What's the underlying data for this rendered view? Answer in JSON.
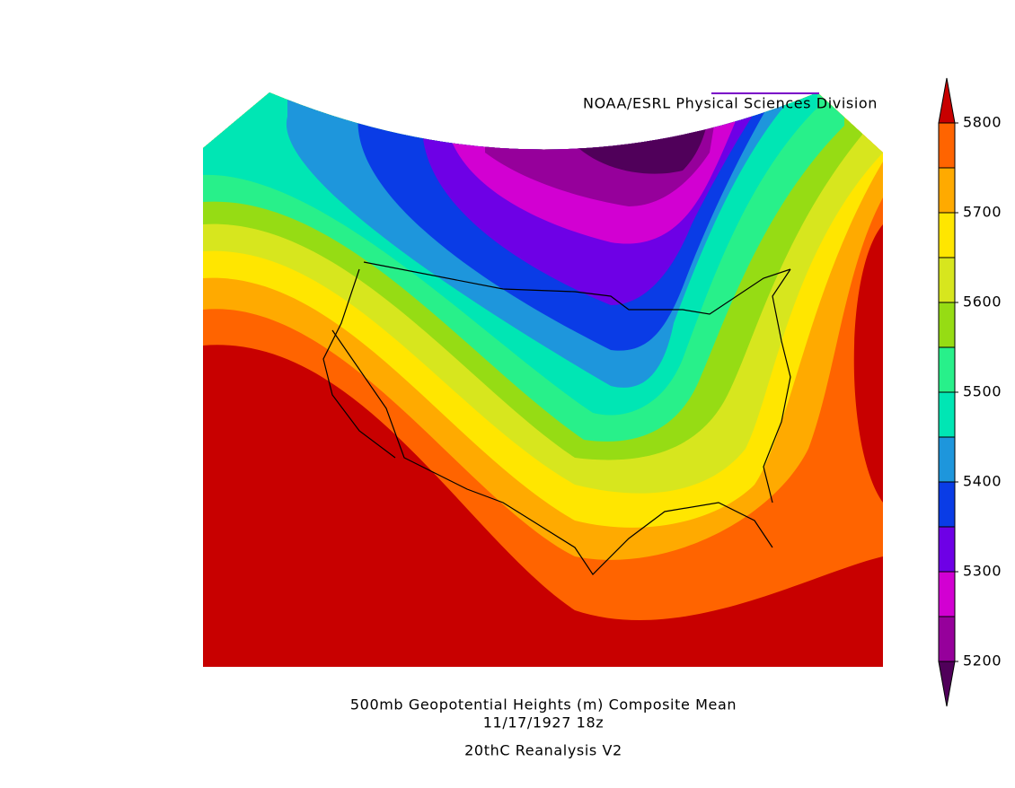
{
  "credit": "NOAA/ESRL Physical Sciences Division",
  "title": "500mb Geopotential Heights (m)   Composite Mean",
  "date": "11/17/1927 18z",
  "dataset": "20thC Reanalysis V2",
  "colorbar": {
    "ticks": [
      5200,
      5300,
      5400,
      5500,
      5600,
      5700,
      5800
    ],
    "colors": [
      "#50005a",
      "#96009b",
      "#d200d2",
      "#6e00e6",
      "#0a3ce6",
      "#1e96dc",
      "#00e6b4",
      "#28f08a",
      "#96dc14",
      "#d7e61e",
      "#ffe600",
      "#ffaa00",
      "#ff6400",
      "#c80000"
    ]
  }
}
